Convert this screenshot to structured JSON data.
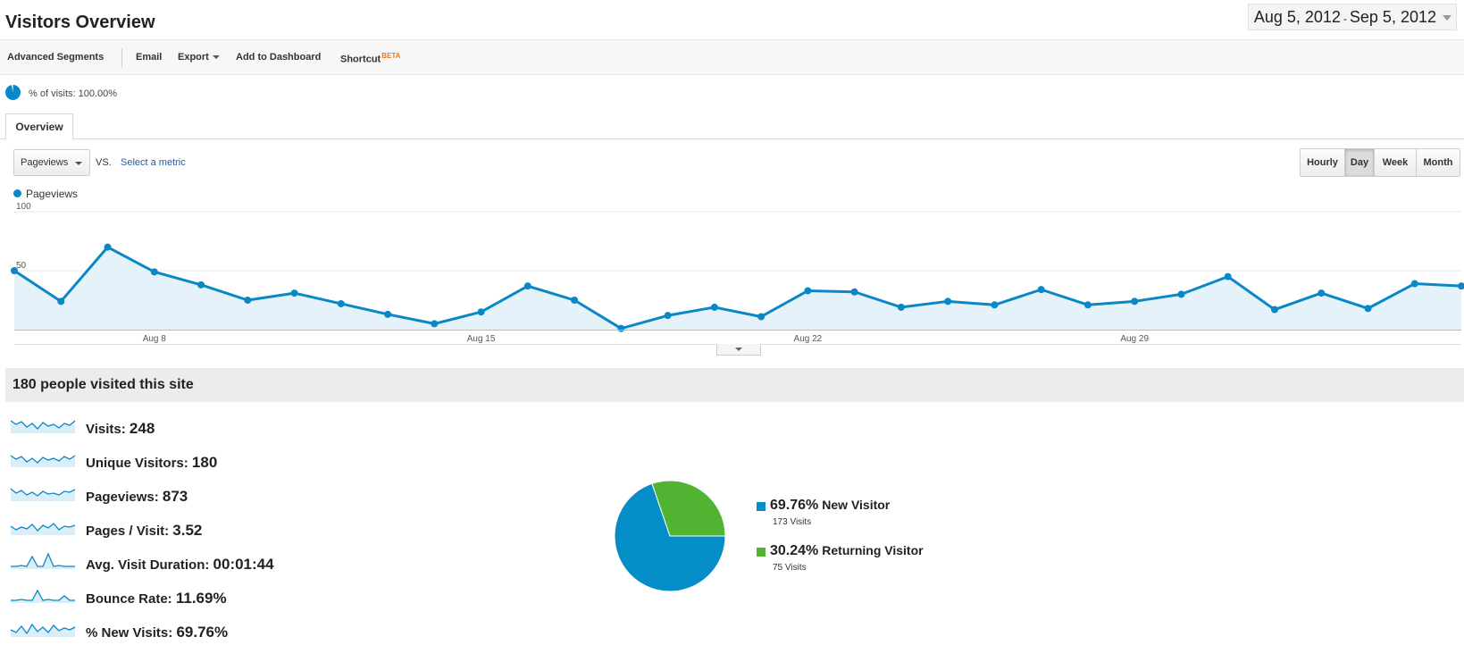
{
  "header": {
    "title": "Visitors Overview",
    "date_start": "Aug 5, 2012",
    "date_sep": "-",
    "date_end": "Sep 5, 2012"
  },
  "toolbar": {
    "advanced_segments": "Advanced Segments",
    "email": "Email",
    "export": "Export",
    "add_to_dashboard": "Add to Dashboard",
    "shortcut": "Shortcut",
    "beta": "BETA"
  },
  "segment": {
    "text": "% of visits: 100.00%"
  },
  "tabs": {
    "overview": "Overview"
  },
  "chart_controls": {
    "metric": "Pageviews",
    "vs": "VS.",
    "select_metric": "Select a metric",
    "periods": [
      "Hourly",
      "Day",
      "Week",
      "Month"
    ],
    "active_period": "Day"
  },
  "chart_data": {
    "type": "line",
    "series": [
      {
        "name": "Pageviews",
        "x": [
          "Aug 5",
          "Aug 6",
          "Aug 7",
          "Aug 8",
          "Aug 9",
          "Aug 10",
          "Aug 11",
          "Aug 12",
          "Aug 13",
          "Aug 14",
          "Aug 15",
          "Aug 16",
          "Aug 17",
          "Aug 18",
          "Aug 19",
          "Aug 20",
          "Aug 21",
          "Aug 22",
          "Aug 23",
          "Aug 24",
          "Aug 25",
          "Aug 26",
          "Aug 27",
          "Aug 28",
          "Aug 29",
          "Aug 30",
          "Aug 31",
          "Sep 1",
          "Sep 2",
          "Sep 3",
          "Sep 4",
          "Sep 5"
        ],
        "values": [
          50,
          24,
          70,
          49,
          38,
          25,
          31,
          22,
          13,
          5,
          15,
          37,
          25,
          1,
          12,
          19,
          11,
          33,
          32,
          19,
          24,
          21,
          34,
          21,
          24,
          30,
          45,
          17,
          31,
          18,
          39,
          37
        ]
      }
    ],
    "x_tick_labels": [
      "Aug 8",
      "Aug 15",
      "Aug 22",
      "Aug 29"
    ],
    "y_tick_labels": [
      "100",
      "50"
    ],
    "ylim": [
      0,
      100
    ],
    "color": "#0a87c6",
    "fill": "#e6f2f9"
  },
  "summary": {
    "title": "180 people visited this site",
    "metrics": [
      {
        "label": "Visits:",
        "value": "248"
      },
      {
        "label": "Unique Visitors:",
        "value": "180"
      },
      {
        "label": "Pageviews:",
        "value": "873"
      },
      {
        "label": "Pages / Visit:",
        "value": "3.52"
      },
      {
        "label": "Avg. Visit Duration:",
        "value": "00:01:44"
      },
      {
        "label": "Bounce Rate:",
        "value": "11.69%"
      },
      {
        "label": "% New Visits:",
        "value": "69.76%"
      }
    ]
  },
  "pie": {
    "slices": [
      {
        "pct_label": "69.76%",
        "pct": 69.76,
        "name": "New Visitor",
        "visits": "173 Visits",
        "color": "#058dc7"
      },
      {
        "pct_label": "30.24%",
        "pct": 30.24,
        "name": "Returning Visitor",
        "visits": "75 Visits",
        "color": "#50b432"
      }
    ]
  }
}
